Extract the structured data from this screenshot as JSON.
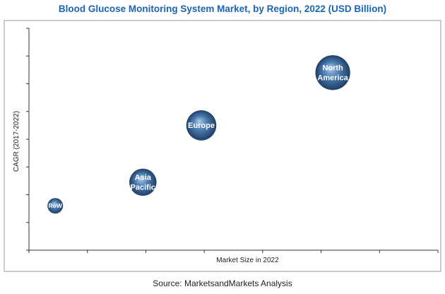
{
  "title": "Blood Glucose Monitoring System Market, by Region, 2022 (USD Billion)",
  "source": "Source: MarketsandMarkets Analysis",
  "colors": {
    "title": "#1a64b4",
    "bubble_light": "#aecbe8",
    "bubble_mid": "#4d7fb3",
    "bubble_dark": "#1f3f66"
  },
  "chart_data": {
    "type": "scatter",
    "title": "Blood Glucose Monitoring System Market, by Region, 2022 (USD Billion)",
    "xlabel": "Market Size in 2022",
    "ylabel": "CAGR (2017-2022)",
    "xlim": [
      0,
      7
    ],
    "ylim": [
      0,
      8
    ],
    "grid": false,
    "legend": "none",
    "ticks_labeled": false,
    "series": [
      {
        "points": [
          {
            "label": "RoW",
            "x": 0.45,
            "y": 1.6,
            "size": 1
          },
          {
            "label": "Asia Pacific",
            "x": 1.95,
            "y": 2.45,
            "size": 2.2
          },
          {
            "label": "Europe",
            "x": 2.95,
            "y": 4.5,
            "size": 2.7
          },
          {
            "label": "North America",
            "x": 5.2,
            "y": 6.4,
            "size": 3.6
          }
        ]
      }
    ]
  }
}
